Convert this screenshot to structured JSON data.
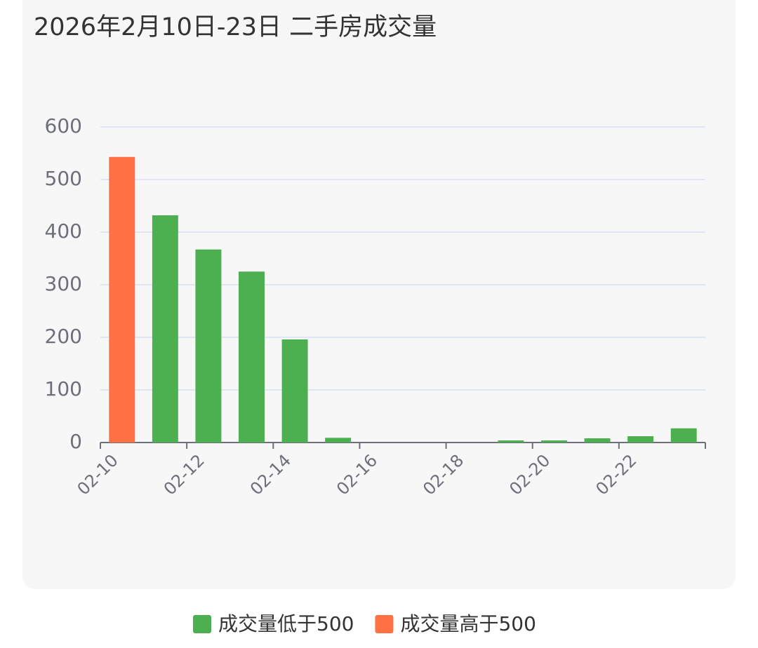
{
  "chart_data": {
    "type": "bar",
    "title": "2026年2月10日-23日 二手房成交量",
    "categories": [
      "02-10",
      null,
      "02-12",
      null,
      "02-14",
      null,
      "02-16",
      null,
      "02-18",
      null,
      "02-20",
      null,
      "02-22",
      null
    ],
    "series": [
      {
        "name": "成交量低于500",
        "color": "#4caf50",
        "values": [
          null,
          432,
          367,
          325,
          196,
          9,
          0,
          0,
          0,
          4,
          4,
          8,
          12,
          27
        ]
      },
      {
        "name": "成交量高于500",
        "color": "#ff7043",
        "values": [
          543,
          null,
          null,
          null,
          null,
          null,
          null,
          null,
          null,
          null,
          null,
          null,
          null,
          null
        ]
      }
    ],
    "ylim": [
      0,
      600
    ],
    "yticks": [
      0,
      100,
      200,
      300,
      400,
      500,
      600
    ],
    "grid": true
  }
}
